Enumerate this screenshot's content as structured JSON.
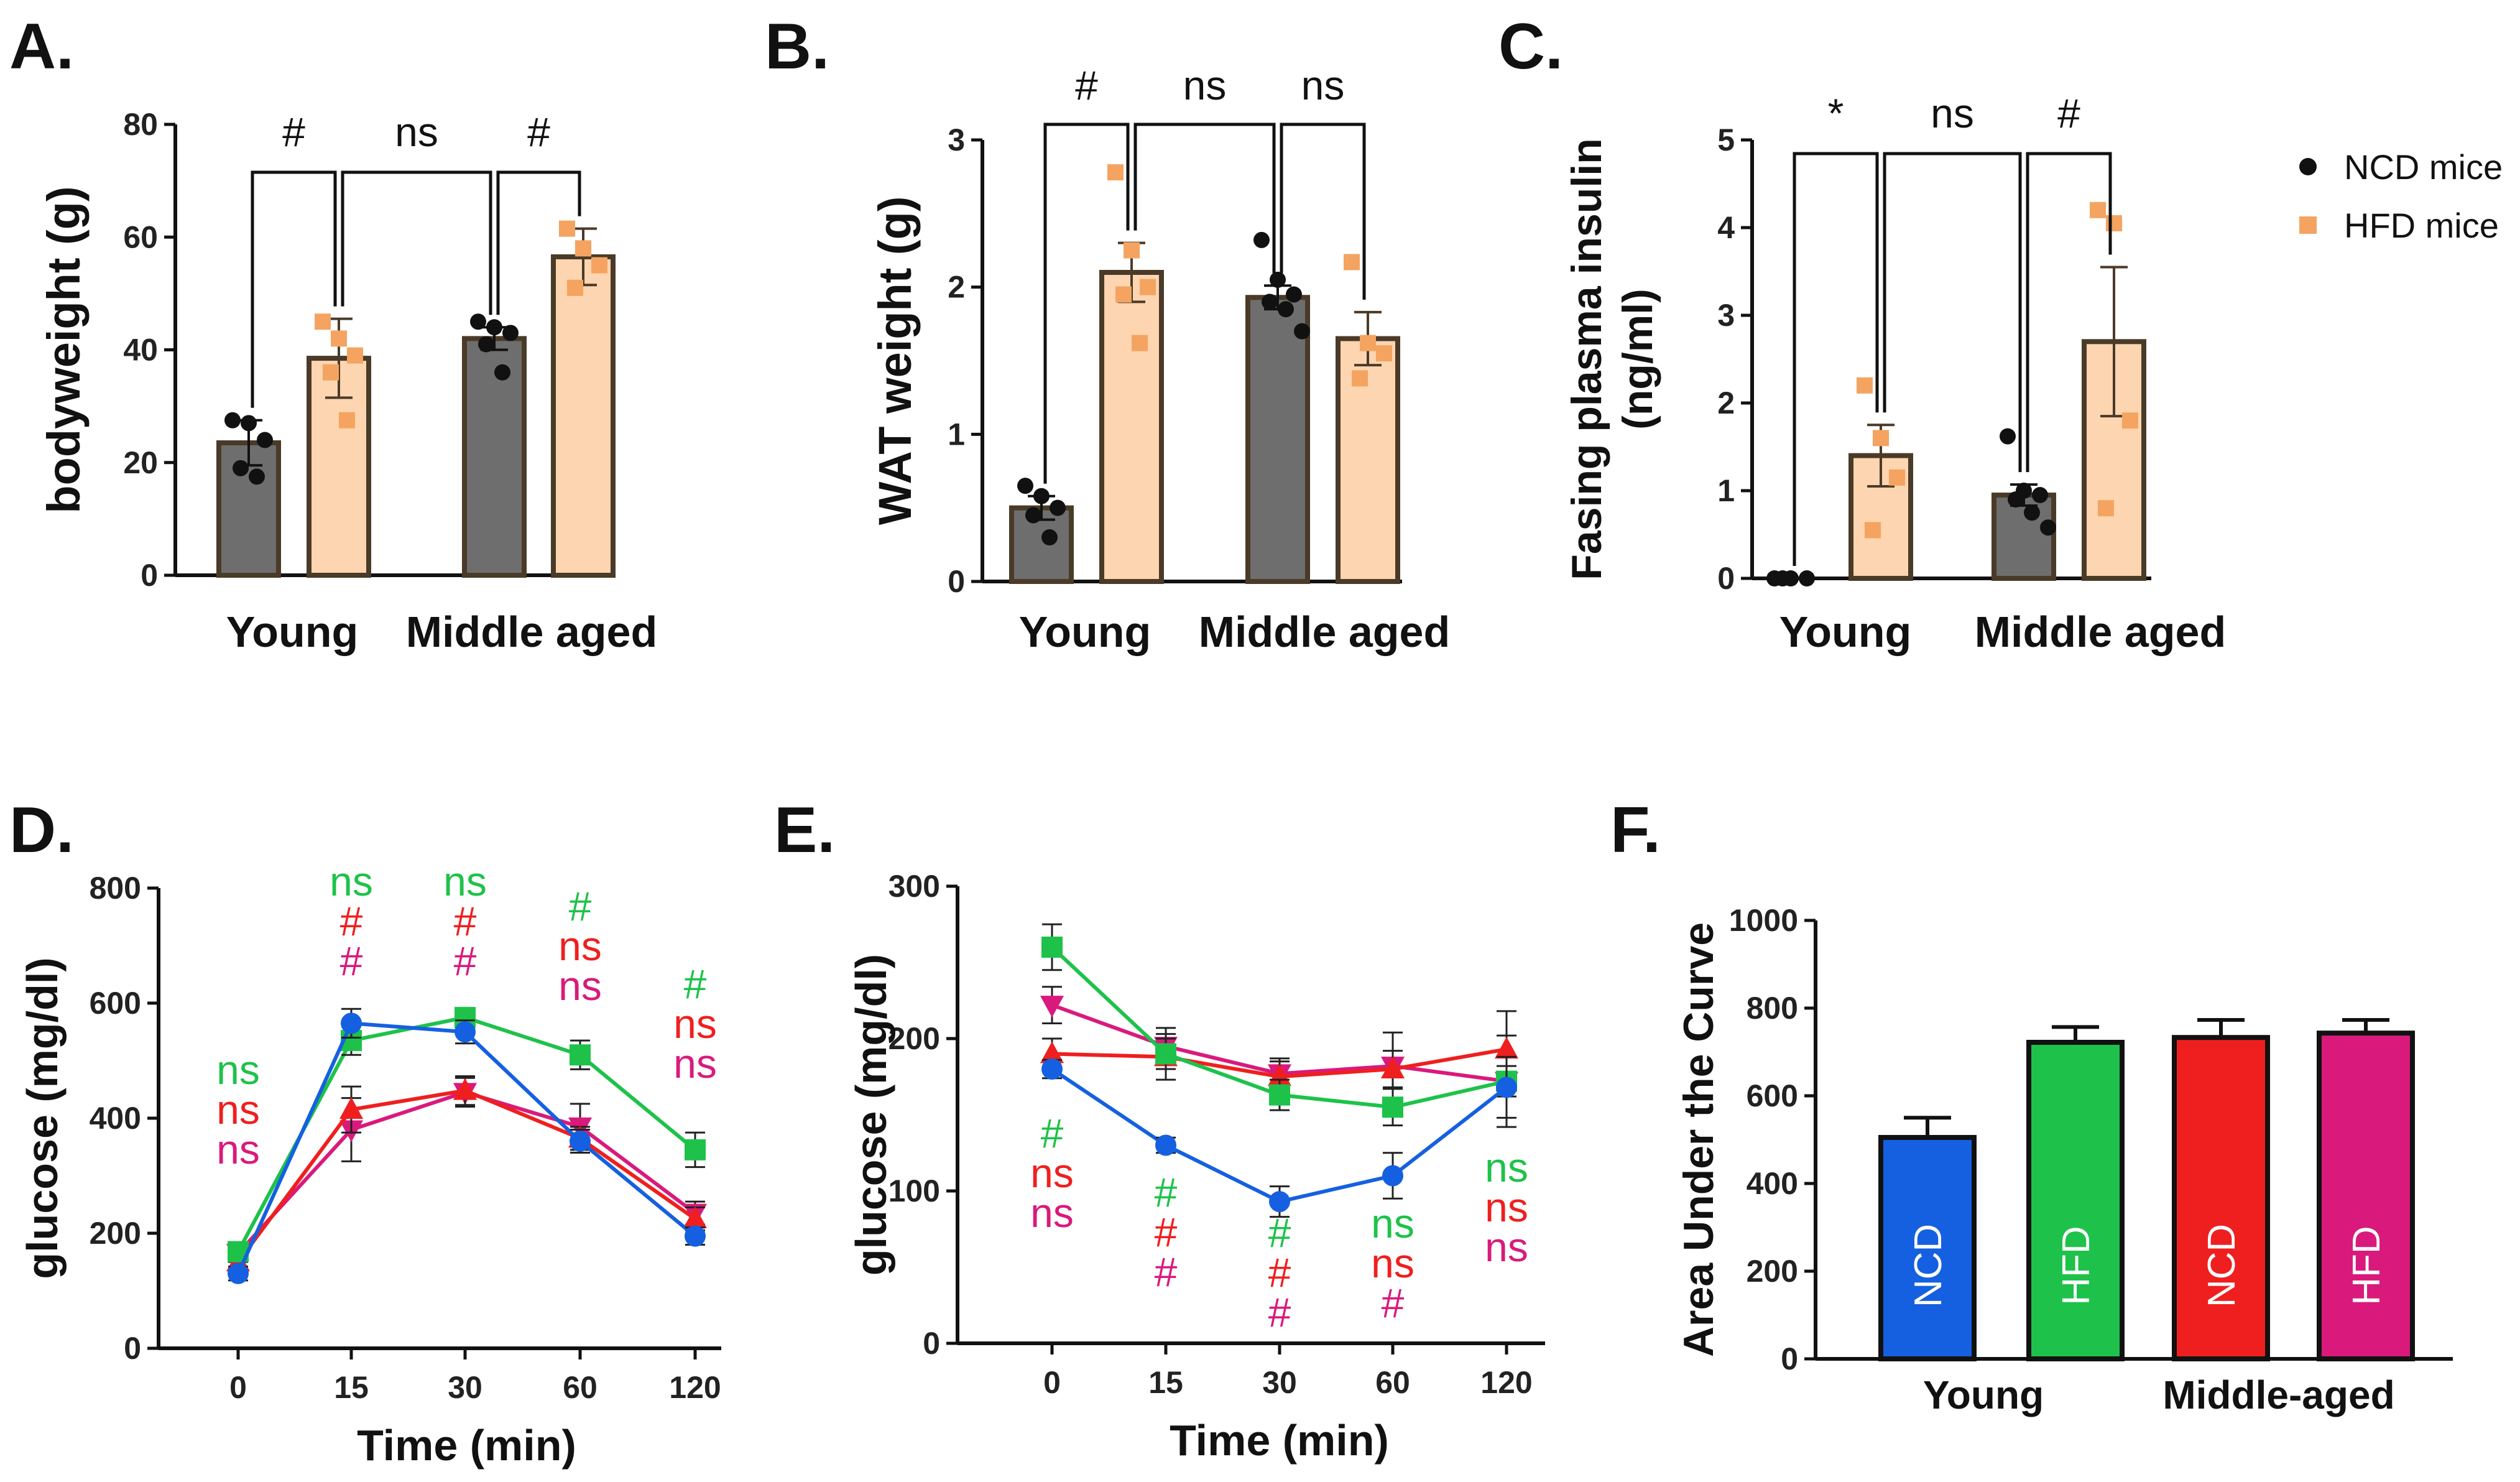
{
  "colors": {
    "ncd_bar": "#6e6e6e",
    "hfd_bar": "#fdd5b0",
    "hfd_marker": "#f4a460",
    "bar_edge": "#4a3a28",
    "ncd_marker": "#111111",
    "young_ncd": "#1560e0",
    "young_hfd": "#1ec24a",
    "middle_ncd": "#ef1f1f",
    "middle_hfd": "#d91a7c"
  },
  "legend": {
    "ncd": "NCD mice",
    "hfd": "HFD mice"
  },
  "chart_data": [
    {
      "panel": "A.",
      "type": "bar",
      "ylabel": "bodyweight (g)",
      "ylim": [
        0,
        80
      ],
      "yticks": [
        "0",
        "20",
        "40",
        "60",
        "80"
      ],
      "groups": [
        "Young",
        "Middle aged"
      ],
      "series": [
        {
          "name": "NCD mice",
          "values": [
            23.5,
            42
          ],
          "errors": [
            4,
            2
          ],
          "points": [
            [
              27.5,
              27,
              24,
              19,
              17.5
            ],
            [
              45,
              44,
              43,
              41,
              36
            ]
          ]
        },
        {
          "name": "HFD mice",
          "values": [
            38.5,
            56.5
          ],
          "errors": [
            7,
            5
          ],
          "points": [
            [
              45,
              42,
              39,
              36,
              27.5
            ],
            [
              61.5,
              58,
              55,
              51
            ]
          ]
        }
      ],
      "comparisons": [
        {
          "label": "#",
          "from": "Young NCD",
          "to": "Young HFD"
        },
        {
          "label": "ns",
          "from": "Young HFD",
          "to": "Middle aged NCD"
        },
        {
          "label": "#",
          "from": "Middle aged NCD",
          "to": "Middle aged HFD"
        }
      ]
    },
    {
      "panel": "B.",
      "type": "bar",
      "ylabel": "WAT weight (g)",
      "ylim": [
        0,
        3
      ],
      "yticks": [
        "0",
        "1",
        "2",
        "3"
      ],
      "groups": [
        "Young",
        "Middle aged"
      ],
      "series": [
        {
          "name": "NCD mice",
          "values": [
            0.5,
            1.93
          ],
          "errors": [
            0.08,
            0.08
          ],
          "points": [
            [
              0.65,
              0.58,
              0.5,
              0.45,
              0.3
            ],
            [
              2.32,
              2.05,
              1.95,
              1.9,
              1.85,
              1.7
            ]
          ]
        },
        {
          "name": "HFD mice",
          "values": [
            2.1,
            1.65
          ],
          "errors": [
            0.2,
            0.18
          ],
          "points": [
            [
              2.78,
              2.25,
              2.0,
              1.95,
              1.62
            ],
            [
              2.17,
              1.62,
              1.55,
              1.38
            ]
          ]
        }
      ],
      "comparisons": [
        {
          "label": "#",
          "from": "Young NCD",
          "to": "Young HFD"
        },
        {
          "label": "ns",
          "from": "Young HFD",
          "to": "Middle aged NCD"
        },
        {
          "label": "ns",
          "from": "Middle aged NCD",
          "to": "Middle aged HFD"
        }
      ]
    },
    {
      "panel": "C.",
      "type": "bar",
      "ylabel": "Fasing plasma insulin (ng/ml)",
      "ylabel_lines": [
        "Fasing plasma insulin",
        "(ng/ml)"
      ],
      "ylim": [
        0,
        5
      ],
      "yticks": [
        "0",
        "1",
        "2",
        "3",
        "4",
        "5"
      ],
      "groups": [
        "Young",
        "Middle aged"
      ],
      "series": [
        {
          "name": "NCD mice",
          "values": [
            0,
            0.95
          ],
          "errors": [
            0,
            0.12
          ],
          "points": [
            [
              0,
              0,
              0,
              0
            ],
            [
              1.62,
              1.0,
              0.95,
              0.9,
              0.75,
              0.58
            ]
          ]
        },
        {
          "name": "HFD mice",
          "values": [
            1.4,
            2.7
          ],
          "errors": [
            0.35,
            0.85
          ],
          "points": [
            [
              2.2,
              1.6,
              1.15,
              0.55
            ],
            [
              4.2,
              4.05,
              1.8,
              0.8
            ]
          ]
        }
      ],
      "comparisons": [
        {
          "label": "*",
          "from": "Young NCD",
          "to": "Young HFD"
        },
        {
          "label": "ns",
          "from": "Young HFD",
          "to": "Middle aged NCD"
        },
        {
          "label": "#",
          "from": "Middle aged NCD",
          "to": "Middle aged HFD"
        }
      ]
    },
    {
      "panel": "D.",
      "type": "line",
      "ylabel": "glucose (mg/dl)",
      "xlabel": "Time (min)",
      "ylim": [
        0,
        800
      ],
      "yticks": [
        "0",
        "200",
        "400",
        "600",
        "800"
      ],
      "x": [
        "0",
        "15",
        "30",
        "60",
        "120"
      ],
      "series": [
        {
          "name": "Young NCD",
          "marker": "circle",
          "values": [
            130,
            565,
            550,
            360,
            195
          ],
          "errors": [
            12,
            25,
            20,
            20,
            15
          ]
        },
        {
          "name": "Young HFD",
          "marker": "square",
          "values": [
            168,
            535,
            575,
            510,
            345
          ],
          "errors": [
            15,
            25,
            15,
            25,
            30
          ]
        },
        {
          "name": "Middle NCD",
          "marker": "triangle-up",
          "values": [
            150,
            415,
            448,
            365,
            225
          ],
          "errors": [
            15,
            40,
            25,
            20,
            20
          ]
        },
        {
          "name": "Middle HFD",
          "marker": "triangle-down",
          "values": [
            165,
            380,
            445,
            385,
            235
          ],
          "errors": [
            15,
            55,
            25,
            40,
            20
          ]
        }
      ],
      "annotations": [
        [
          "ns",
          "ns",
          "ns"
        ],
        [
          "ns",
          "#",
          "#"
        ],
        [
          "ns",
          "#",
          "#"
        ],
        [
          "#",
          "ns",
          "ns"
        ],
        [
          "#",
          "ns",
          "ns"
        ]
      ]
    },
    {
      "panel": "E.",
      "type": "line",
      "ylabel": "glucose (mg/dl)",
      "xlabel": "Time (min)",
      "ylim": [
        0,
        300
      ],
      "yticks": [
        "0",
        "100",
        "200",
        "300"
      ],
      "x": [
        "0",
        "15",
        "30",
        "60",
        "120"
      ],
      "series": [
        {
          "name": "Young NCD",
          "marker": "circle",
          "values": [
            180,
            130,
            93,
            110,
            168
          ],
          "errors": [
            6,
            5,
            10,
            15,
            20
          ]
        },
        {
          "name": "Young HFD",
          "marker": "square",
          "values": [
            260,
            190,
            163,
            155,
            172
          ],
          "errors": [
            15,
            10,
            10,
            12,
            10
          ]
        },
        {
          "name": "Middle NCD",
          "marker": "triangle-up",
          "values": [
            190,
            188,
            175,
            180,
            193
          ],
          "errors": [
            10,
            15,
            10,
            12,
            25
          ]
        },
        {
          "name": "Middle HFD",
          "marker": "triangle-down",
          "values": [
            222,
            195,
            177,
            182,
            172
          ],
          "errors": [
            12,
            12,
            10,
            22,
            30
          ]
        }
      ],
      "annotations": [
        [
          "#",
          "ns",
          "ns"
        ],
        [
          "#",
          "#",
          "#"
        ],
        [
          "#",
          "#",
          "#"
        ],
        [
          "ns",
          "ns",
          "#"
        ],
        [
          "ns",
          "ns",
          "ns"
        ]
      ]
    },
    {
      "panel": "F.",
      "type": "bar",
      "ylabel": "Area Under the Curve",
      "ylim": [
        0,
        1000
      ],
      "yticks": [
        "0",
        "200",
        "400",
        "600",
        "800",
        "1000"
      ],
      "groups": [
        "Young",
        "Middle-aged"
      ],
      "bars": [
        {
          "label": "NCD",
          "group": "Young",
          "value": 505,
          "error": 45
        },
        {
          "label": "HFD",
          "group": "Young",
          "value": 722,
          "error": 35
        },
        {
          "label": "NCD",
          "group": "Middle-aged",
          "value": 733,
          "error": 40
        },
        {
          "label": "HFD",
          "group": "Middle-aged",
          "value": 743,
          "error": 30
        }
      ]
    }
  ]
}
